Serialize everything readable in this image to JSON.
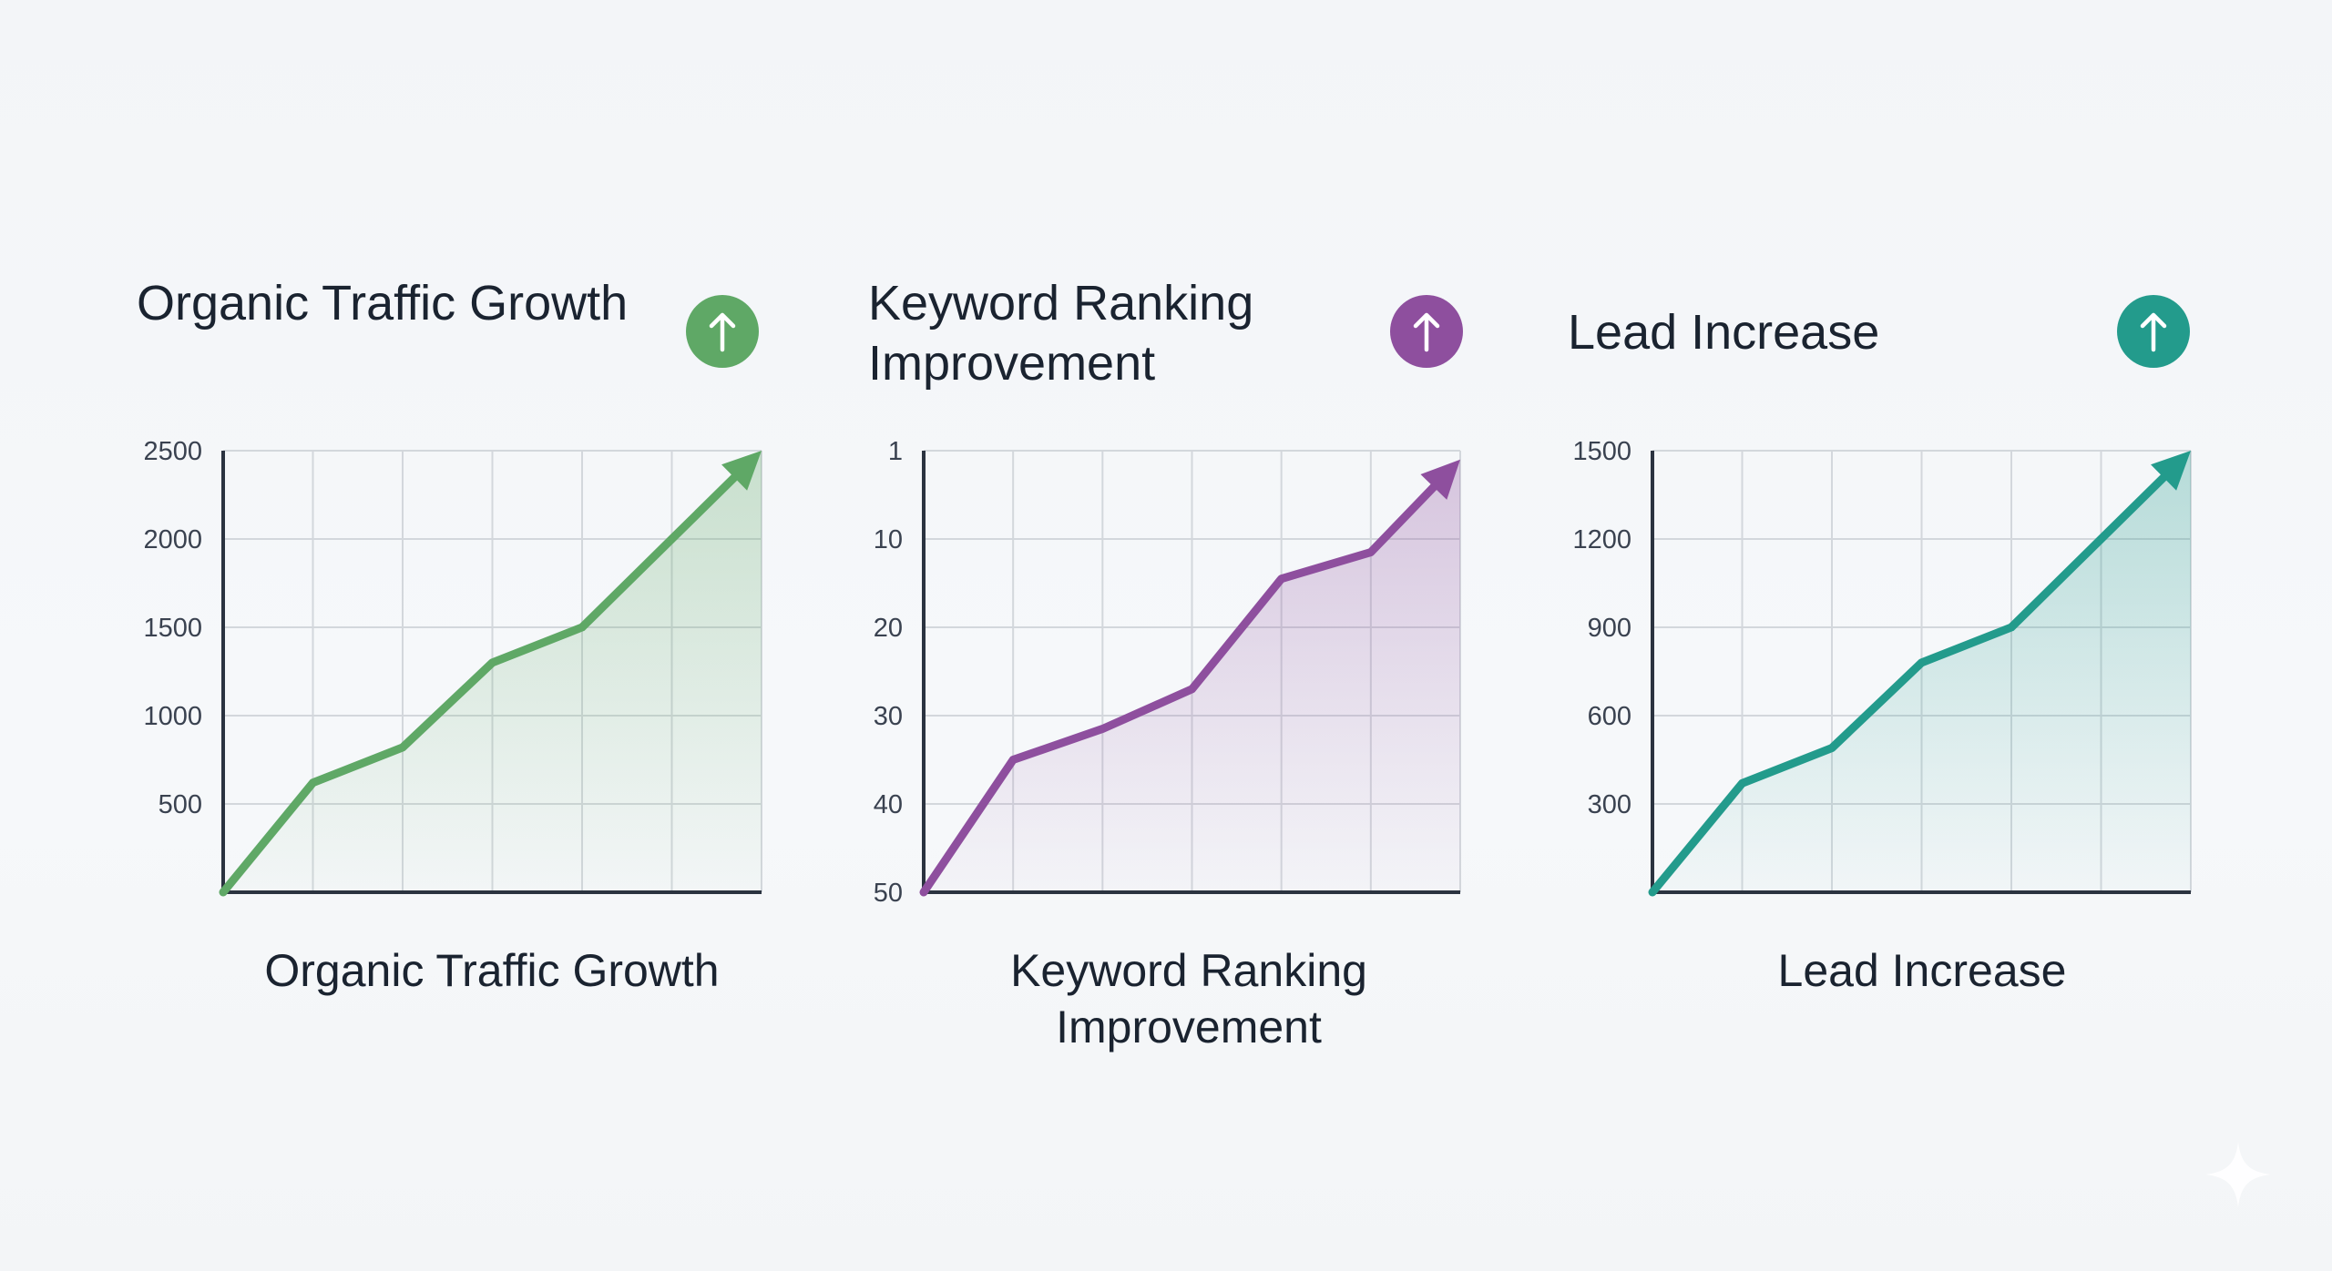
{
  "chart_data": [
    {
      "type": "area",
      "title": "Organic Traffic Growth",
      "caption": "Organic Traffic Growth",
      "x": [
        0,
        1,
        2,
        3,
        4,
        5,
        6
      ],
      "values": [
        0,
        620,
        820,
        1300,
        1500,
        2000,
        2500
      ],
      "yticks": [
        "2500",
        "2000",
        "1500",
        "1000",
        "500"
      ],
      "ylim": [
        0,
        2500
      ],
      "inverted": false,
      "grid": true,
      "trend_icon": "arrow-up-icon",
      "color": "#5fa866"
    },
    {
      "type": "area",
      "title": "Keyword Ranking Improvement",
      "caption": "Keyword Ranking Improvement",
      "x": [
        0,
        1,
        2,
        3,
        4,
        5,
        6
      ],
      "values": [
        50,
        35,
        31.5,
        27,
        14.5,
        11.5,
        1
      ],
      "yticks": [
        "1",
        "10",
        "20",
        "30",
        "40",
        "50"
      ],
      "ylim": [
        0,
        50
      ],
      "inverted": true,
      "grid": true,
      "trend_icon": "arrow-up-icon",
      "color": "#8e4f9e"
    },
    {
      "type": "area",
      "title": "Lead Increase",
      "caption": "Lead Increase",
      "x": [
        0,
        1,
        2,
        3,
        4,
        5,
        6
      ],
      "values": [
        0,
        370,
        490,
        780,
        900,
        1200,
        1500
      ],
      "yticks": [
        "1500",
        "1200",
        "900",
        "600",
        "300"
      ],
      "ylim": [
        0,
        1500
      ],
      "inverted": false,
      "grid": true,
      "trend_icon": "arrow-up-icon",
      "color": "#239b8c"
    }
  ]
}
